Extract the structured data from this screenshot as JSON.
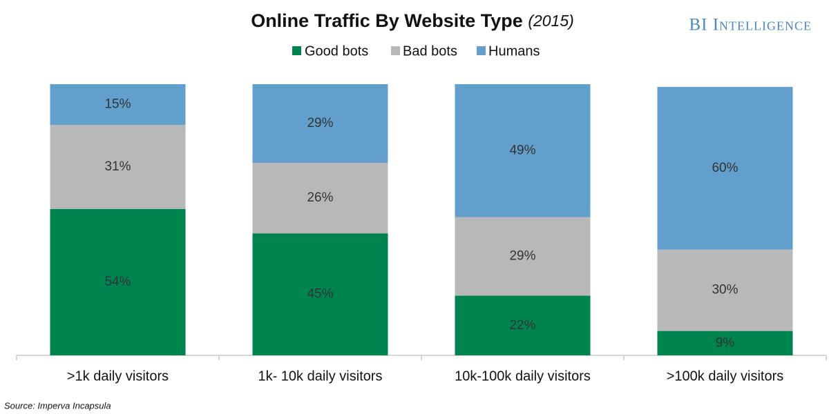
{
  "chart_data": {
    "type": "stacked_bar",
    "title": "Online Traffic By Website Type",
    "subtitle": "(2015)",
    "brand": "BI Intelligence",
    "source": "Source: Imperva Incapsula",
    "categories": [
      ">1k daily visitors",
      "1k- 10k daily visitors",
      "10k-100k daily visitors",
      ">100k daily visitors"
    ],
    "series": [
      {
        "name": "Good bots",
        "color": "#00844f",
        "values": [
          54,
          45,
          22,
          9
        ],
        "value_labels": [
          "54%",
          "45%",
          "22%",
          "9%"
        ]
      },
      {
        "name": "Bad bots",
        "color": "#b8b8b8",
        "values": [
          31,
          26,
          29,
          30
        ],
        "value_labels": [
          "31%",
          "26%",
          "29%",
          "30%"
        ]
      },
      {
        "name": "Humans",
        "color": "#639fcc",
        "values": [
          15,
          29,
          49,
          60
        ],
        "value_labels": [
          "15%",
          "29%",
          "49%",
          "60%"
        ]
      }
    ],
    "ylim": [
      0,
      100
    ],
    "legend": "top"
  }
}
